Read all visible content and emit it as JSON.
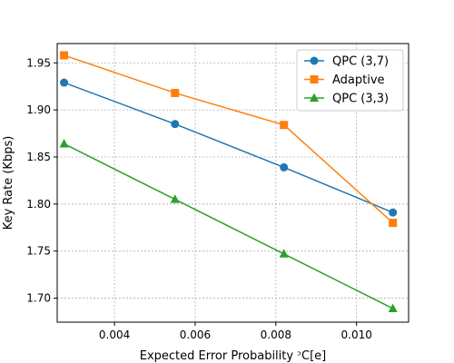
{
  "chart_data": {
    "type": "line",
    "title": "",
    "xlabel": "Expected Error Probability ᵓC[e]",
    "ylabel": "Key Rate (Kbps)",
    "xlim": [
      0.00258,
      0.01129
    ],
    "ylim": [
      1.6745,
      1.9705
    ],
    "xticks": [
      0.004,
      0.006,
      0.008,
      0.01
    ],
    "xtick_labels": [
      "0.004",
      "0.006",
      "0.008",
      "0.010"
    ],
    "yticks": [
      1.7,
      1.75,
      1.8,
      1.85,
      1.9,
      1.95
    ],
    "ytick_labels": [
      "1.70",
      "1.75",
      "1.80",
      "1.85",
      "1.90",
      "1.95"
    ],
    "grid": true,
    "legend_position": "top-right",
    "series": [
      {
        "name": "QPC (3,7)",
        "color": "#1f77b4",
        "marker": "circle",
        "x": [
          0.00275,
          0.0055,
          0.0082,
          0.0109
        ],
        "y": [
          1.929,
          1.885,
          1.839,
          1.791
        ]
      },
      {
        "name": "Adaptive",
        "color": "#ff7f0e",
        "marker": "square",
        "x": [
          0.00275,
          0.0055,
          0.0082,
          0.0109
        ],
        "y": [
          1.958,
          1.918,
          1.884,
          1.78
        ]
      },
      {
        "name": "QPC (3,3)",
        "color": "#2ca02c",
        "marker": "triangle",
        "x": [
          0.00275,
          0.0055,
          0.0082,
          0.0109
        ],
        "y": [
          1.864,
          1.805,
          1.747,
          1.689
        ]
      }
    ]
  }
}
